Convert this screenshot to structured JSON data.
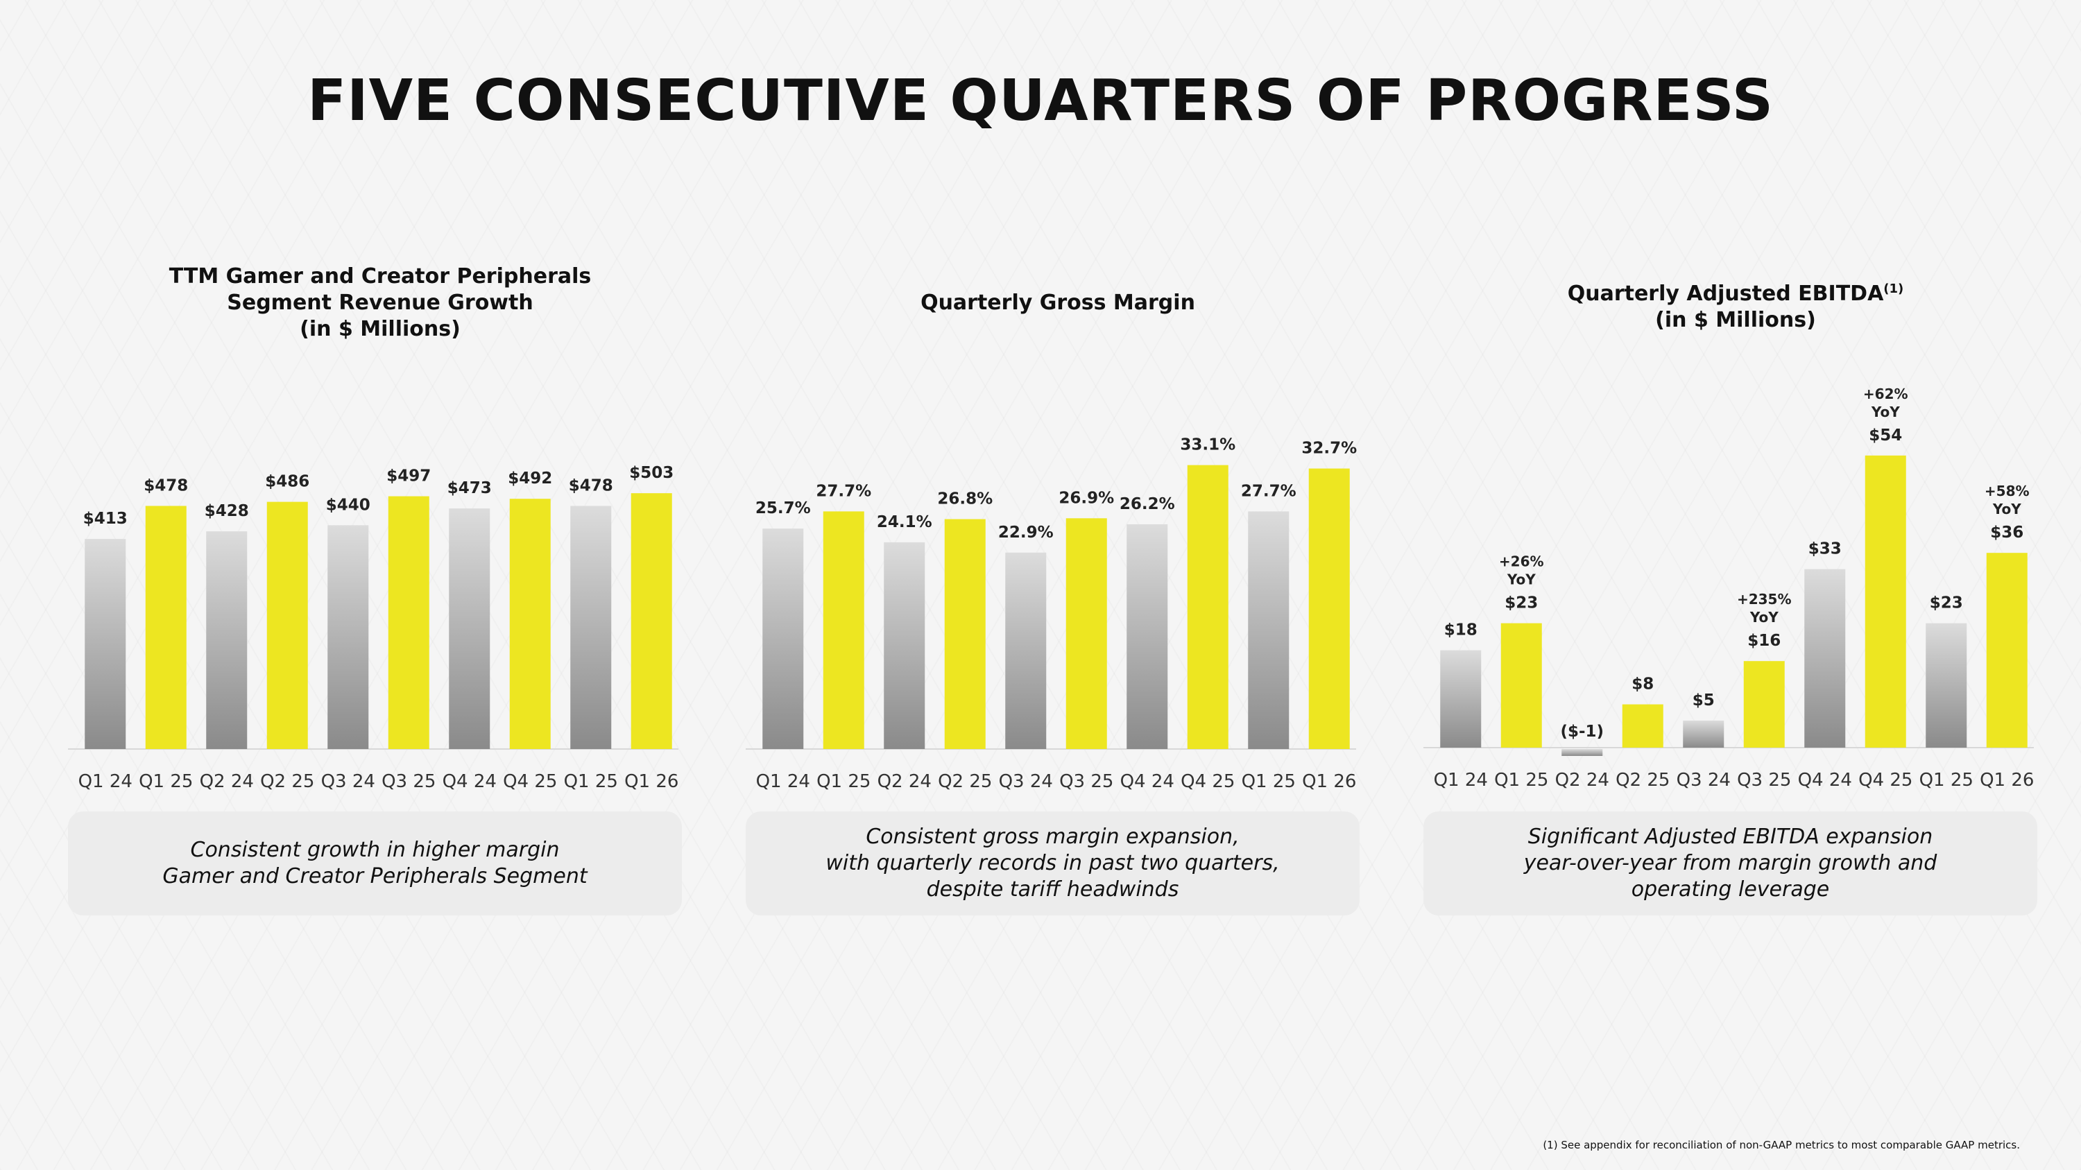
{
  "page": {
    "title": "FIVE CONSECUTIVE QUARTERS OF PROGRESS",
    "footnote": "(1) See appendix for reconciliation of non-GAAP metrics to most comparable GAAP metrics."
  },
  "colors": {
    "highlight": "#ede621",
    "base_top": "#dcdcdc",
    "base_bottom": "#8a8a8a",
    "caption_bg": "#ececec"
  },
  "panels": [
    {
      "title_lines": [
        "TTM Gamer and Creator Peripherals",
        "Segment Revenue Growth",
        "(in $ Millions)"
      ],
      "caption": "Consistent growth in higher margin\nGamer and Creator Peripherals Segment"
    },
    {
      "title_lines": [
        "Quarterly Gross Margin"
      ],
      "caption": "Consistent gross margin expansion,\nwith quarterly records in past two quarters,\ndespite tariff headwinds"
    },
    {
      "title_lines": [
        "Quarterly Adjusted EBITDA",
        "(in $ Millions)"
      ],
      "title_superscript": "(1)",
      "caption": "Significant Adjusted EBITDA expansion\nyear-over-year from margin growth and\noperating leverage"
    }
  ],
  "chart_data": [
    {
      "type": "bar",
      "title": "TTM Gamer and Creator Peripherals Segment Revenue Growth (in $ Millions)",
      "categories": [
        "Q1 24",
        "Q1 25",
        "Q2 24",
        "Q2 25",
        "Q3 24",
        "Q3 25",
        "Q4 24",
        "Q4 25",
        "Q1 25",
        "Q1 26"
      ],
      "values": [
        413,
        478,
        428,
        486,
        440,
        497,
        473,
        492,
        478,
        503
      ],
      "labels": [
        "$413",
        "$478",
        "$428",
        "$486",
        "$440",
        "$497",
        "$473",
        "$492",
        "$478",
        "$503"
      ],
      "highlight": [
        false,
        true,
        false,
        true,
        false,
        true,
        false,
        true,
        false,
        true
      ],
      "yoy": [
        "",
        "",
        "",
        "",
        "",
        "",
        "",
        "",
        "",
        ""
      ],
      "ylim": [
        0,
        600
      ],
      "grid": false
    },
    {
      "type": "bar",
      "title": "Quarterly Gross Margin",
      "categories": [
        "Q1 24",
        "Q1 25",
        "Q2 24",
        "Q2 25",
        "Q3 24",
        "Q3 25",
        "Q4 24",
        "Q4 25",
        "Q1 25",
        "Q1 26"
      ],
      "values": [
        25.7,
        27.7,
        24.1,
        26.8,
        22.9,
        26.9,
        26.2,
        33.1,
        27.7,
        32.7
      ],
      "labels": [
        "25.7%",
        "27.7%",
        "24.1%",
        "26.8%",
        "22.9%",
        "26.9%",
        "26.2%",
        "33.1%",
        "27.7%",
        "32.7%"
      ],
      "highlight": [
        false,
        true,
        false,
        true,
        false,
        true,
        false,
        true,
        false,
        true
      ],
      "yoy": [
        "",
        "",
        "",
        "",
        "",
        "",
        "",
        "",
        "",
        ""
      ],
      "ylim": [
        0,
        38
      ],
      "grid": false
    },
    {
      "type": "bar",
      "title": "Quarterly Adjusted EBITDA (in $ Millions)",
      "categories": [
        "Q1 24",
        "Q1 25",
        "Q2 24",
        "Q2 25",
        "Q3 24",
        "Q3 25",
        "Q4 24",
        "Q4 25",
        "Q1 25",
        "Q1 26"
      ],
      "values": [
        18,
        23,
        -1,
        8,
        5,
        16,
        33,
        54,
        23,
        36
      ],
      "labels": [
        "$18",
        "$23",
        "($-1)",
        "$8",
        "$5",
        "$16",
        "$33",
        "$54",
        "$23",
        "$36"
      ],
      "highlight": [
        false,
        true,
        false,
        true,
        false,
        true,
        false,
        true,
        false,
        true
      ],
      "yoy": [
        "",
        "+26%\nYoY",
        "",
        "",
        "",
        "+235%\nYoY",
        "",
        "+62%\nYoY",
        "",
        "+58%\nYoY"
      ],
      "ylim": [
        -1,
        60
      ],
      "grid": false
    }
  ]
}
